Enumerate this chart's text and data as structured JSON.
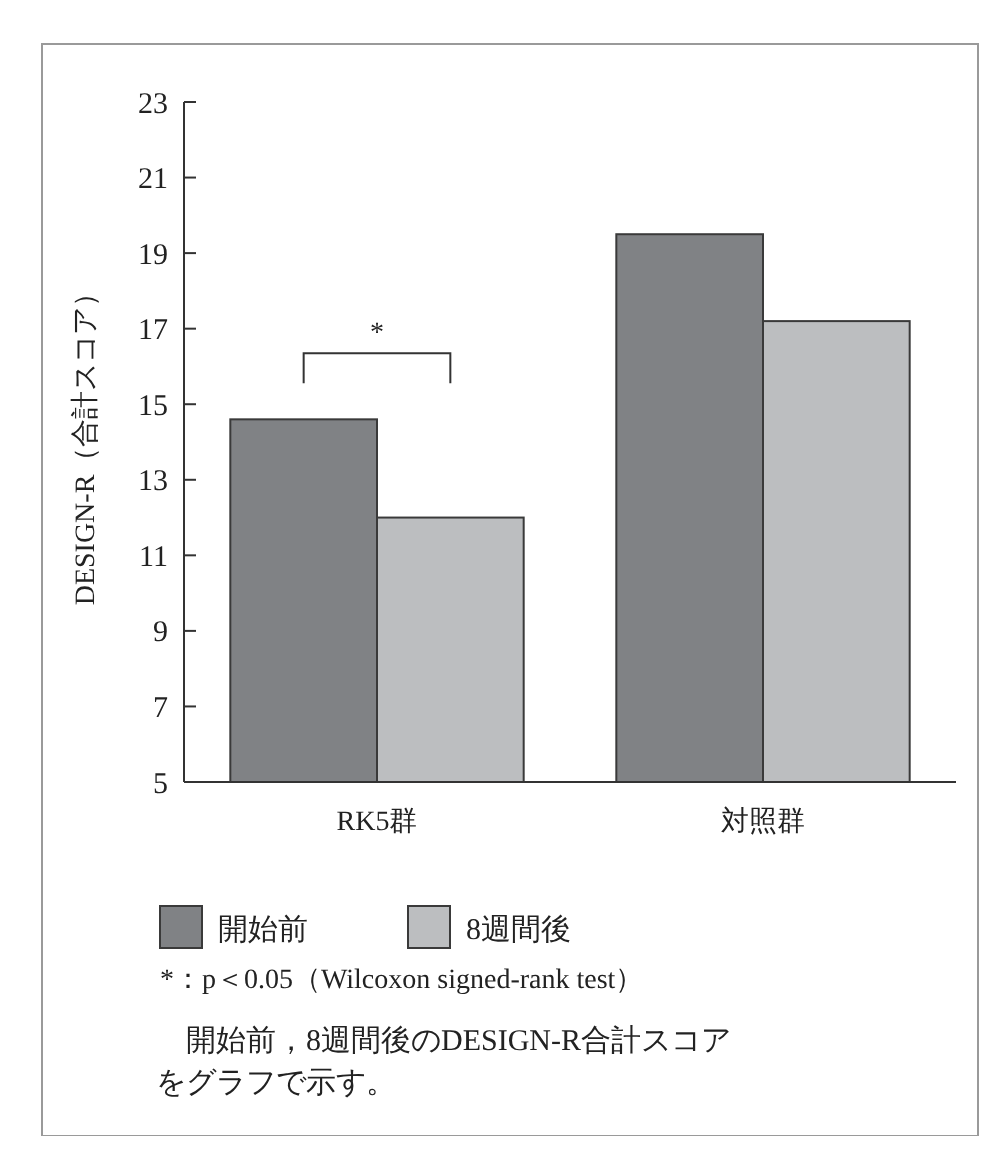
{
  "chart_data": {
    "type": "bar",
    "ylabel": "DESIGN-R（合計スコア）",
    "categories": [
      "RK5群",
      "対照群"
    ],
    "series": [
      {
        "name": "開始前",
        "color": "#808285",
        "values": [
          14.6,
          19.5
        ]
      },
      {
        "name": "8週間後",
        "color": "#bcbec0",
        "values": [
          12.0,
          17.2
        ]
      }
    ],
    "ylim": [
      5,
      23
    ],
    "yticks": [
      5,
      7,
      9,
      11,
      13,
      15,
      17,
      19,
      21,
      23
    ],
    "legend": "bottom",
    "annotations": [
      "*",
      "*：p＜0.05（Wilcoxon signed-rank test）",
      "開始前，8週間後のDESIGN-R合計スコアをグラフで示す。"
    ]
  }
}
